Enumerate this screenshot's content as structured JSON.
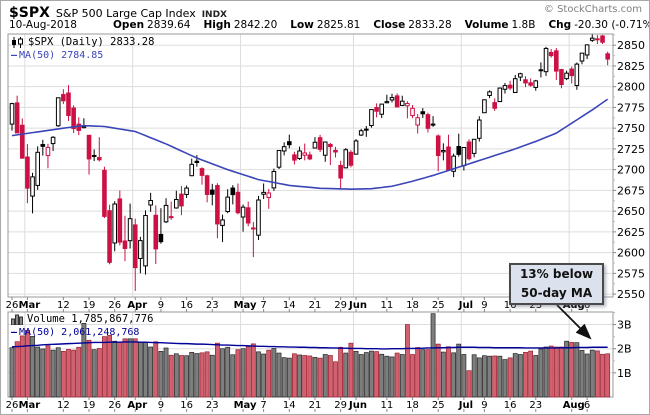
{
  "header": {
    "symbol": "$SPX",
    "name": "S&P 500 Large Cap Index",
    "exchange": "INDX",
    "copyright": "© StockCharts.com",
    "date": "10-Aug-2018",
    "quote_fields": [
      {
        "label": "Open",
        "value": "2839.64"
      },
      {
        "label": "High",
        "value": "2842.20"
      },
      {
        "label": "Low",
        "value": "2825.81"
      },
      {
        "label": "Close",
        "value": "2833.28"
      },
      {
        "label": "Volume",
        "value": "1.8B"
      },
      {
        "label": "Chg",
        "value": "-20.30 (-0.71%)",
        "arrow": "▼"
      }
    ]
  },
  "legend_price": {
    "line1": "$SPX (Daily) 2833.28",
    "line2": "MA(50) 2784.85"
  },
  "legend_volume": {
    "line1": "Volume 1,785,867,776",
    "line2": "MA(50) 2,061,248,768"
  },
  "annotation": {
    "line1": "13% below",
    "line2": "50-day MA"
  },
  "colors": {
    "up": "#000000",
    "down": "#cc1144",
    "candle_bg": "#ffffff",
    "price_ma": "#3a45b8",
    "volume_ma": "#000099",
    "vol_up_fill": "#7e7e7e",
    "vol_up_stroke": "#262626",
    "vol_down_fill": "#d2606e",
    "vol_down_stroke": "#992030",
    "grid": "#dddddd",
    "pane_border": "#999999",
    "tick": "#888888",
    "axis_text": "#000000",
    "chg_arrow": "#aa1133",
    "annotation_bg": "#dbe2ee",
    "annotation_border": "#4a4a4a",
    "arrow": "#111111"
  },
  "chart_data": {
    "type": "candlestick",
    "title": "$SPX Daily candlesticks with 50-day MA, volume pane below",
    "price_axis": {
      "min": 2546.5,
      "max": 2863.5,
      "label_start": 2550,
      "label_end": 2850,
      "step": 25
    },
    "volume_axis": {
      "max": 3.52,
      "labels": [
        {
          "value": 1,
          "label": "1B"
        },
        {
          "value": 2,
          "label": "2B"
        },
        {
          "value": 3,
          "label": "3B"
        }
      ]
    },
    "x_ticks": [
      {
        "i": 0,
        "label": "26",
        "bold": false
      },
      {
        "i": 3,
        "label": "Mar",
        "bold": true
      },
      {
        "i": 10,
        "label": "12",
        "bold": false
      },
      {
        "i": 15,
        "label": "19",
        "bold": false
      },
      {
        "i": 20,
        "label": "26",
        "bold": false
      },
      {
        "i": 24,
        "label": "Apr",
        "bold": true
      },
      {
        "i": 29,
        "label": "9",
        "bold": false
      },
      {
        "i": 34,
        "label": "16",
        "bold": false
      },
      {
        "i": 39,
        "label": "23",
        "bold": false
      },
      {
        "i": 45,
        "label": "May",
        "bold": true
      },
      {
        "i": 49,
        "label": "7",
        "bold": false
      },
      {
        "i": 54,
        "label": "14",
        "bold": false
      },
      {
        "i": 59,
        "label": "21",
        "bold": false
      },
      {
        "i": 64,
        "label": "29",
        "bold": false
      },
      {
        "i": 67,
        "label": "Jun",
        "bold": true
      },
      {
        "i": 73,
        "label": "11",
        "bold": false
      },
      {
        "i": 78,
        "label": "18",
        "bold": false
      },
      {
        "i": 83,
        "label": "25",
        "bold": false
      },
      {
        "i": 88,
        "label": "Jul",
        "bold": true
      },
      {
        "i": 92,
        "label": "9",
        "bold": false
      },
      {
        "i": 97,
        "label": "16",
        "bold": false
      },
      {
        "i": 102,
        "label": "23",
        "bold": false
      },
      {
        "i": 109,
        "label": "Aug",
        "bold": true
      },
      {
        "i": 112,
        "label": "6",
        "bold": false
      }
    ],
    "month_start_indices": [
      3,
      24,
      45,
      67,
      88,
      109
    ],
    "ohlc": [
      [
        2754.9,
        2780.6,
        2747.1,
        2779.6
      ],
      [
        2780.5,
        2789.2,
        2744.1,
        2744.3
      ],
      [
        2753.5,
        2761.6,
        2713.5,
        2713.8
      ],
      [
        2715.2,
        2730.8,
        2659.6,
        2677.7
      ],
      [
        2668.1,
        2696.2,
        2647.3,
        2691.3
      ],
      [
        2681,
        2728.1,
        2675.7,
        2720.9
      ],
      [
        2730.3,
        2736,
        2716.9,
        2728.1
      ],
      [
        2717,
        2731.1,
        2701.7,
        2726.8
      ],
      [
        2731.4,
        2740.4,
        2722.5,
        2739
      ],
      [
        2752.9,
        2786.6,
        2751.5,
        2786.6
      ],
      [
        2790.5,
        2797,
        2779,
        2783
      ],
      [
        2792.4,
        2801.9,
        2758.7,
        2765.3
      ],
      [
        2774.3,
        2777.5,
        2744,
        2749.5
      ],
      [
        2754.8,
        2763,
        2741.5,
        2747.3
      ],
      [
        2750.6,
        2761.9,
        2749.8,
        2752
      ],
      [
        2741.4,
        2741.4,
        2694.1,
        2712.9
      ],
      [
        2717.1,
        2724.3,
        2710.3,
        2716.9
      ],
      [
        2714.6,
        2739.1,
        2709.8,
        2711.9
      ],
      [
        2699.2,
        2703.5,
        2641.6,
        2643.7
      ],
      [
        2650.5,
        2657.7,
        2585.9,
        2588.3
      ],
      [
        2611.6,
        2661.9,
        2601.6,
        2658.6
      ],
      [
        2664.7,
        2674.8,
        2608.7,
        2612.6
      ],
      [
        2614,
        2644.5,
        2589.7,
        2605
      ],
      [
        2614.4,
        2659.1,
        2604.9,
        2640.9
      ],
      [
        2633.4,
        2640.9,
        2553.8,
        2581.9
      ],
      [
        2592.9,
        2619.1,
        2575.1,
        2614.5
      ],
      [
        2584,
        2650.9,
        2573.6,
        2644.7
      ],
      [
        2657.4,
        2672.1,
        2649.1,
        2662.8
      ],
      [
        2645,
        2656.9,
        2586.3,
        2604.5
      ],
      [
        2621.9,
        2653.6,
        2610.8,
        2613.2
      ],
      [
        2637.1,
        2665.5,
        2635.6,
        2656.9
      ],
      [
        2643.4,
        2661.4,
        2639.5,
        2642.2
      ],
      [
        2653.8,
        2674.7,
        2653,
        2664
      ],
      [
        2670.5,
        2680.3,
        2645.1,
        2656.3
      ],
      [
        2670.1,
        2680.8,
        2665.9,
        2677.8
      ],
      [
        2692.7,
        2713.3,
        2692.1,
        2706.4
      ],
      [
        2710.1,
        2717.5,
        2703.6,
        2708.6
      ],
      [
        2701.2,
        2702.8,
        2681.9,
        2693.1
      ],
      [
        2692.6,
        2693.9,
        2660.6,
        2670.1
      ],
      [
        2675.4,
        2682.9,
        2657,
        2670.3
      ],
      [
        2680.8,
        2683.6,
        2617.3,
        2634.6
      ],
      [
        2632.8,
        2645.8,
        2612.7,
        2639.4
      ],
      [
        2649.5,
        2676.4,
        2647.5,
        2666.9
      ],
      [
        2677.8,
        2681.3,
        2658.1,
        2669.9
      ],
      [
        2672.7,
        2683.3,
        2646.1,
        2648.1
      ],
      [
        2642.9,
        2658,
        2625.3,
        2654.8
      ],
      [
        2654,
        2661.5,
        2631.8,
        2635.7
      ],
      [
        2628.6,
        2637,
        2594.6,
        2629.7
      ],
      [
        2621,
        2668.4,
        2615.2,
        2663.4
      ],
      [
        2670.4,
        2683.3,
        2664.6,
        2672.6
      ],
      [
        2666.5,
        2676.8,
        2652.8,
        2671.9
      ],
      [
        2678,
        2701.3,
        2674.4,
        2697.8
      ],
      [
        2703,
        2723.6,
        2700.7,
        2723.1
      ],
      [
        2722.5,
        2732.9,
        2717.2,
        2727.7
      ],
      [
        2733.7,
        2742.2,
        2725.8,
        2730.1
      ],
      [
        2717.8,
        2721.6,
        2706.3,
        2711.5
      ],
      [
        2713.4,
        2727.8,
        2711.7,
        2722.5
      ],
      [
        2717.4,
        2731.4,
        2711.2,
        2720.1
      ],
      [
        2717.7,
        2721.8,
        2711.4,
        2713
      ],
      [
        2726.1,
        2739.2,
        2725.4,
        2733
      ],
      [
        2738.5,
        2742,
        2721.2,
        2724.4
      ],
      [
        2717.4,
        2734,
        2709.5,
        2733.3
      ],
      [
        2730.4,
        2732.2,
        2705.6,
        2727.8
      ],
      [
        2723.2,
        2727.5,
        2714.7,
        2721.3
      ],
      [
        2705.1,
        2710.7,
        2676.8,
        2689.9
      ],
      [
        2702.2,
        2726,
        2701.8,
        2724
      ],
      [
        2720.9,
        2723.4,
        2702.7,
        2705.3
      ],
      [
        2718.7,
        2736.9,
        2718,
        2734.6
      ],
      [
        2741.7,
        2749.2,
        2740.5,
        2746.9
      ],
      [
        2748.5,
        2752.6,
        2739.5,
        2748.8
      ],
      [
        2753.2,
        2772.4,
        2750.6,
        2772.4
      ],
      [
        2774.8,
        2779.9,
        2763,
        2770.4
      ],
      [
        2766.8,
        2779.1,
        2762.3,
        2779
      ],
      [
        2780.6,
        2790.3,
        2780,
        2782
      ],
      [
        2784,
        2791.5,
        2781,
        2786.9
      ],
      [
        2788.9,
        2791.9,
        2774.9,
        2775.6
      ],
      [
        2777.4,
        2789.1,
        2776.5,
        2782.5
      ],
      [
        2777,
        2782.5,
        2761.8,
        2779.7
      ],
      [
        2765.2,
        2777.9,
        2762,
        2773.9
      ],
      [
        2753.8,
        2766.9,
        2743.6,
        2762.6
      ],
      [
        2769.8,
        2774.2,
        2762.3,
        2767.3
      ],
      [
        2766.3,
        2768.6,
        2744.8,
        2749.8
      ],
      [
        2754.2,
        2764.5,
        2751.6,
        2754.9
      ],
      [
        2740.6,
        2742.4,
        2698,
        2717.1
      ],
      [
        2721.5,
        2731.7,
        2711.2,
        2723.1
      ],
      [
        2727.3,
        2742.1,
        2698.8,
        2699.6
      ],
      [
        2698,
        2719.3,
        2691,
        2716.3
      ],
      [
        2727.9,
        2743.3,
        2715.7,
        2718.4
      ],
      [
        2704.9,
        2727.3,
        2698.9,
        2726.7
      ],
      [
        2733.3,
        2736.6,
        2711.1,
        2713.2
      ],
      [
        2719.6,
        2737.1,
        2714.9,
        2736.6
      ],
      [
        2737.8,
        2764.4,
        2733.9,
        2759.8
      ],
      [
        2768.6,
        2784.7,
        2768.6,
        2784.2
      ],
      [
        2789.4,
        2795.6,
        2786.2,
        2793.8
      ],
      [
        2780.8,
        2785.9,
        2770.8,
        2774
      ],
      [
        2782.1,
        2799.2,
        2781.4,
        2798.3
      ],
      [
        2796.9,
        2804.5,
        2791.7,
        2801.3
      ],
      [
        2801.8,
        2807.1,
        2795.8,
        2798.4
      ],
      [
        2793,
        2814.1,
        2792.6,
        2809.6
      ],
      [
        2811.6,
        2816.8,
        2806.8,
        2815.6
      ],
      [
        2808.3,
        2812.6,
        2799.5,
        2804.5
      ],
      [
        2804.6,
        2809.9,
        2800,
        2801.8
      ],
      [
        2799.1,
        2808.2,
        2795.1,
        2807
      ],
      [
        2819.8,
        2829.3,
        2811.1,
        2820.4
      ],
      [
        2818.1,
        2848,
        2813,
        2846.1
      ],
      [
        2841.3,
        2845.4,
        2835.1,
        2837.4
      ],
      [
        2843.2,
        2846.6,
        2808,
        2818.8
      ],
      [
        2820.6,
        2821.5,
        2798.1,
        2802.6
      ],
      [
        2809.7,
        2819.3,
        2807.9,
        2816.3
      ],
      [
        2821.2,
        2824.1,
        2803.8,
        2813.4
      ],
      [
        2801.4,
        2829.2,
        2796.3,
        2827.2
      ],
      [
        2830.9,
        2840.4,
        2827,
        2840.4
      ],
      [
        2838.2,
        2851,
        2833.3,
        2850.4
      ],
      [
        2855.9,
        2863,
        2853.9,
        2858.5
      ],
      [
        2856.8,
        2862.4,
        2851.4,
        2857.7
      ],
      [
        2861.1,
        2862.5,
        2851.5,
        2853.6
      ],
      [
        2839.64,
        2842.2,
        2825.81,
        2833.28
      ]
    ],
    "volume_b": [
      2.04,
      2.29,
      2.53,
      2.76,
      2.51,
      2.07,
      1.99,
      2.12,
      1.94,
      2.04,
      1.89,
      1.97,
      1.94,
      2.06,
      3.05,
      2.35,
      1.96,
      2.01,
      2.5,
      2.55,
      2.31,
      2.27,
      2.41,
      2.41,
      2.41,
      2.26,
      2.27,
      2.07,
      2.29,
      1.89,
      2.03,
      1.73,
      1.79,
      1.72,
      1.71,
      1.85,
      1.8,
      1.83,
      1.87,
      1.73,
      2.23,
      2.0,
      2.06,
      1.75,
      1.96,
      2.0,
      2.08,
      2.2,
      1.87,
      1.78,
      1.94,
      2.01,
      1.82,
      1.63,
      1.61,
      1.79,
      1.74,
      1.72,
      1.7,
      1.64,
      1.61,
      1.76,
      1.72,
      1.46,
      2.06,
      1.82,
      2.23,
      1.89,
      1.76,
      1.84,
      1.9,
      1.88,
      1.77,
      1.69,
      1.66,
      1.82,
      1.76,
      3.0,
      1.76,
      2.05,
      1.96,
      1.96,
      3.45,
      2.19,
      1.86,
      2.08,
      1.83,
      2.19,
      1.76,
      1.09,
      1.75,
      1.62,
      1.71,
      1.69,
      1.7,
      1.69,
      1.55,
      1.62,
      1.8,
      1.76,
      1.85,
      1.9,
      1.72,
      1.99,
      2.07,
      2.11,
      2.07,
      2.07,
      2.31,
      2.26,
      2.25,
      1.93,
      1.78,
      1.94,
      1.91,
      1.77,
      1.79
    ],
    "ma50": [
      2741,
      2741.9,
      2742.8,
      2743.7,
      2744.6,
      2745.5,
      2746.4,
      2747.3,
      2748.2,
      2749.1,
      2750,
      2750.8,
      2751.5,
      2752.3,
      2753,
      2752.8,
      2752.5,
      2752.3,
      2752,
      2751,
      2750,
      2749,
      2748,
      2747,
      2746,
      2743.5,
      2741,
      2738.5,
      2736,
      2733.5,
      2731,
      2728.2,
      2725.3,
      2722.5,
      2719.7,
      2716.8,
      2714,
      2711.7,
      2709.3,
      2707,
      2704.7,
      2702.3,
      2700,
      2698,
      2696,
      2694,
      2692,
      2690,
      2688,
      2686.8,
      2685.7,
      2684.5,
      2683.3,
      2682.2,
      2681,
      2680.4,
      2679.8,
      2679.3,
      2678.7,
      2678.1,
      2677.5,
      2677.3,
      2677.2,
      2677,
      2676.8,
      2676.7,
      2676.5,
      2676.6,
      2676.8,
      2676.9,
      2677,
      2677.8,
      2678.5,
      2679.3,
      2680,
      2681.5,
      2683,
      2684.5,
      2686,
      2687.8,
      2689.5,
      2691.3,
      2693,
      2695,
      2697,
      2699,
      2701,
      2703,
      2705,
      2707,
      2709,
      2711,
      2713,
      2715,
      2717,
      2719,
      2721,
      2723,
      2725,
      2727.3,
      2729.5,
      2731.8,
      2734,
      2736.5,
      2739,
      2741.5,
      2744,
      2748,
      2752,
      2756,
      2760,
      2764,
      2768,
      2772,
      2776.3,
      2780.6,
      2784.85
    ],
    "vol_ma50_b": [
      2.08,
      2.09,
      2.1,
      2.12,
      2.13,
      2.14,
      2.16,
      2.17,
      2.18,
      2.19,
      2.2,
      2.21,
      2.22,
      2.23,
      2.24,
      2.25,
      2.26,
      2.26,
      2.26,
      2.27,
      2.27,
      2.27,
      2.28,
      2.28,
      2.28,
      2.27,
      2.27,
      2.26,
      2.25,
      2.25,
      2.24,
      2.23,
      2.22,
      2.21,
      2.21,
      2.2,
      2.19,
      2.19,
      2.18,
      2.17,
      2.16,
      2.15,
      2.15,
      2.14,
      2.13,
      2.13,
      2.12,
      2.11,
      2.1,
      2.1,
      2.09,
      2.09,
      2.08,
      2.08,
      2.07,
      2.07,
      2.06,
      2.06,
      2.05,
      2.05,
      2.04,
      2.04,
      2.03,
      2.03,
      2.02,
      2.02,
      2.01,
      2.01,
      2.01,
      2.0,
      2.0,
      2.0,
      1.99,
      1.99,
      2.0,
      2.0,
      2.0,
      2.01,
      2.01,
      2.01,
      2.02,
      2.03,
      2.03,
      2.04,
      2.04,
      2.05,
      2.05,
      2.06,
      2.06,
      2.06,
      2.06,
      2.05,
      2.05,
      2.05,
      2.04,
      2.04,
      2.04,
      2.04,
      2.04,
      2.04,
      2.03,
      2.03,
      2.03,
      2.03,
      2.03,
      2.03,
      2.03,
      2.04,
      2.04,
      2.04,
      2.05,
      2.05,
      2.05,
      2.06,
      2.06,
      2.06,
      2.06
    ]
  }
}
